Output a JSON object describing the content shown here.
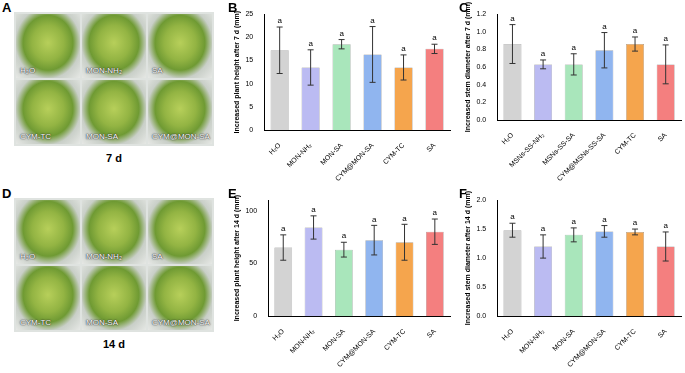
{
  "photos": [
    {
      "panel": "A",
      "labels": [
        "H₂O",
        "MON-NH₂",
        "SA",
        "CYM-TC",
        "MON-SA",
        "CYM@MON-SA"
      ],
      "caption": "7 d"
    },
    {
      "panel": "D",
      "labels": [
        "H₂O",
        "MON-NH₂",
        "SA",
        "CYM-TC",
        "MON-SA",
        "CYM@MON-SA"
      ],
      "caption": "14 d"
    }
  ],
  "chart_data": [
    {
      "panel": "B",
      "type": "bar",
      "y_label": "Increased plant height after 7 d (mm)",
      "categories": [
        "H₂O",
        "MON-NH₂",
        "MON-SA",
        "CYM@MON-SA",
        "CYM-TC",
        "SA"
      ],
      "values": [
        17.2,
        13.5,
        18.5,
        16.3,
        13.5,
        17.5
      ],
      "errors": [
        5.0,
        3.8,
        1.0,
        6.0,
        2.7,
        1.0
      ],
      "letters": [
        "a",
        "a",
        "a",
        "a",
        "a",
        "a"
      ],
      "colors": [
        "#d3d3d3",
        "#bbbbf2",
        "#a9e6bb",
        "#90b5ef",
        "#f5a54d",
        "#f47f7f"
      ],
      "ylim": [
        0,
        25
      ],
      "yticks": [
        0,
        5,
        10,
        15,
        20,
        25
      ],
      "grid": false
    },
    {
      "panel": "C",
      "type": "bar",
      "y_label": "Increased stem diameter after 7 d (mm)",
      "categories": [
        "H₂O",
        "MSNs-SS-NH₂",
        "MSNs-SS-SA",
        "CYM@MSNs-SS-SA",
        "CYM-TC",
        "SA"
      ],
      "values": [
        0.86,
        0.63,
        0.63,
        0.79,
        0.86,
        0.63
      ],
      "errors": [
        0.22,
        0.05,
        0.12,
        0.2,
        0.08,
        0.22
      ],
      "letters": [
        "a",
        "a",
        "a",
        "a",
        "a",
        "a"
      ],
      "colors": [
        "#d3d3d3",
        "#bbbbf2",
        "#a9e6bb",
        "#90b5ef",
        "#f5a54d",
        "#f47f7f"
      ],
      "ylim": [
        0,
        1.2
      ],
      "yticks": [
        {
          "value": 0,
          "label": "0.0"
        },
        0.2,
        0.4,
        0.6,
        0.8,
        {
          "value": 1,
          "label": "1.0"
        },
        1.2
      ],
      "grid": false
    },
    {
      "panel": "E",
      "type": "bar",
      "y_label": "Increased plant height after 14 d (mm)",
      "categories": [
        "H₂O",
        "MON-NH₂",
        "MON-SA",
        "CYM@MON-SA",
        "CYM-TC",
        "SA"
      ],
      "values": [
        65,
        84,
        63,
        72,
        70,
        80
      ],
      "errors": [
        12,
        11,
        7,
        14,
        17,
        12
      ],
      "letters": [
        "a",
        "a",
        "a",
        "a",
        "a",
        "a"
      ],
      "colors": [
        "#d3d3d3",
        "#bbbbf2",
        "#a9e6bb",
        "#90b5ef",
        "#f5a54d",
        "#f47f7f"
      ],
      "ylim": [
        0,
        110
      ],
      "yticks": [
        0,
        50,
        100
      ],
      "grid": false
    },
    {
      "panel": "F",
      "type": "bar",
      "y_label": "Increased stem diameter after 14 d (mm)",
      "categories": [
        "H₂O",
        "MON-NH₂",
        "MON-SA",
        "CYM@MON-SA",
        "CYM-TC",
        "SA"
      ],
      "values": [
        1.48,
        1.2,
        1.4,
        1.46,
        1.45,
        1.2
      ],
      "errors": [
        0.12,
        0.2,
        0.12,
        0.1,
        0.05,
        0.25
      ],
      "letters": [
        "a",
        "a",
        "a",
        "a",
        "a",
        "a"
      ],
      "colors": [
        "#d3d3d3",
        "#bbbbf2",
        "#a9e6bb",
        "#90b5ef",
        "#f5a54d",
        "#f47f7f"
      ],
      "ylim": [
        0,
        2
      ],
      "yticks": [
        {
          "value": 0,
          "label": "0.0"
        },
        0.5,
        {
          "value": 1,
          "label": "1.0"
        },
        1.5,
        {
          "value": 2,
          "label": "2.0"
        }
      ],
      "grid": false
    }
  ]
}
